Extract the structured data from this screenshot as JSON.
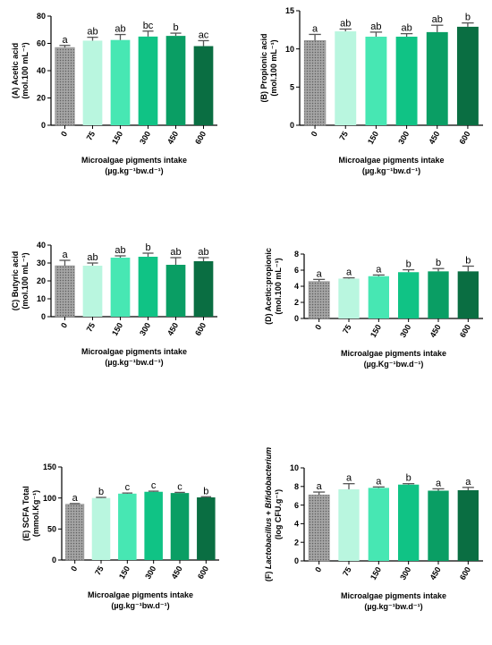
{
  "colors": {
    "axis": "#000000",
    "error_bar": "#555555",
    "bars": [
      "#9d9d9d",
      "#b9f6df",
      "#47e7b3",
      "#10c385",
      "#0a9e64",
      "#0a6e42"
    ],
    "first_bar_pattern": "dotted"
  },
  "chart_data": [
    {
      "type": "bar",
      "panel_label": "(A)",
      "ylabel_line1": "(A) Acetic acid",
      "ylabel_line2": "(mol.100 mL⁻¹)",
      "xlabel_line1": "Microalgae pigments intake",
      "xlabel_line2": "(µg.kg⁻¹bw.d⁻¹)",
      "categories": [
        "0",
        "75",
        "150",
        "300",
        "450",
        "600"
      ],
      "values": [
        57,
        62,
        62.5,
        65,
        65.5,
        58
      ],
      "errors": [
        1.5,
        2.5,
        4,
        4,
        2,
        4
      ],
      "letters": [
        "a",
        "ab",
        "ab",
        "bc",
        "b",
        "ac"
      ],
      "ylim": [
        0,
        80
      ],
      "yticks": [
        "0",
        "20",
        "40",
        "60",
        "80"
      ]
    },
    {
      "type": "bar",
      "panel_label": "(B)",
      "ylabel_line1": "(B) Propionic acid",
      "ylabel_line2": "(mol.100 mL⁻¹)",
      "xlabel_line1": "Microalgae pigments intake",
      "xlabel_line2": "(µg.kg⁻¹bw.d⁻¹)",
      "categories": [
        "0",
        "75",
        "150",
        "300",
        "450",
        "600"
      ],
      "values": [
        11.1,
        12.3,
        11.6,
        11.6,
        12.2,
        12.9
      ],
      "errors": [
        0.8,
        0.3,
        0.6,
        0.4,
        0.9,
        0.5
      ],
      "letters": [
        "a",
        "ab",
        "ab",
        "ab",
        "ab",
        "b"
      ],
      "ylim": [
        0,
        15
      ],
      "yticks": [
        "0",
        "5",
        "10",
        "15"
      ]
    },
    {
      "type": "bar",
      "panel_label": "(C)",
      "ylabel_line1": "(C) Butyric acid",
      "ylabel_line2": "(mol.100 mL⁻¹)",
      "xlabel_line1": "Microalgae pigments intake",
      "xlabel_line2": "(µg.kg⁻¹bw.d⁻¹)",
      "categories": [
        "0",
        "75",
        "150",
        "300",
        "450",
        "600"
      ],
      "values": [
        28.5,
        28.5,
        33,
        33.5,
        29,
        31
      ],
      "errors": [
        3,
        1.5,
        1,
        2,
        4,
        2
      ],
      "letters": [
        "a",
        "ab",
        "ab",
        "b",
        "ab",
        "ab"
      ],
      "ylim": [
        0,
        40
      ],
      "yticks": [
        "0",
        "10",
        "20",
        "30",
        "40"
      ]
    },
    {
      "type": "bar",
      "panel_label": "(D)",
      "ylabel_line1": "(D) Acetic:propionic",
      "ylabel_line2": "(mol.100 mL⁻¹)",
      "xlabel_line1": "Microalgae pigments intake",
      "xlabel_line2": "(µg.Kg⁻¹bw.d⁻¹)",
      "categories": [
        "0",
        "75",
        "150",
        "300",
        "450",
        "600"
      ],
      "values": [
        4.6,
        4.95,
        5.25,
        5.75,
        5.85,
        5.85
      ],
      "errors": [
        0.25,
        0.1,
        0.15,
        0.3,
        0.35,
        0.65
      ],
      "letters": [
        "a",
        "a",
        "a",
        "b",
        "b",
        "b"
      ],
      "ylim": [
        0,
        8
      ],
      "yticks": [
        "0",
        "2",
        "4",
        "6",
        "8"
      ]
    },
    {
      "type": "bar",
      "panel_label": "(E)",
      "ylabel_line1": "(E) SCFA Total",
      "ylabel_line2": "(mmol.Kg⁻¹)",
      "xlabel_line1": "Microalgae pigments intake",
      "xlabel_line2": "(µg.kg⁻¹bw.d⁻¹)",
      "categories": [
        "0",
        "75",
        "150",
        "300",
        "450",
        "600"
      ],
      "values": [
        90,
        100,
        107,
        110,
        108,
        101
      ],
      "errors": [
        1,
        1,
        1,
        1,
        1,
        1
      ],
      "letters": [
        "a",
        "b",
        "c",
        "c",
        "c",
        "b"
      ],
      "ylim": [
        0,
        150
      ],
      "yticks": [
        "0",
        "50",
        "100",
        "150"
      ]
    },
    {
      "type": "bar",
      "panel_label": "(F)",
      "ylabel_line1_parts": [
        "(F) ",
        "Lactobacillus",
        " + ",
        "Bifidobacterium"
      ],
      "ylabel_line2": "(log CFU.g⁻¹)",
      "xlabel_line1": "Microalgae pigments intake",
      "xlabel_line2": "(µg.kg⁻¹bw.d⁻¹)",
      "categories": [
        "0",
        "75",
        "150",
        "300",
        "450",
        "600"
      ],
      "values": [
        7.1,
        7.7,
        7.85,
        8.2,
        7.55,
        7.6
      ],
      "errors": [
        0.3,
        0.6,
        0.1,
        0.1,
        0.2,
        0.3
      ],
      "letters": [
        "a",
        "a",
        "a",
        "b",
        "a",
        "a"
      ],
      "ylim": [
        0,
        10
      ],
      "yticks": [
        "0",
        "2",
        "4",
        "6",
        "8",
        "10"
      ]
    }
  ]
}
